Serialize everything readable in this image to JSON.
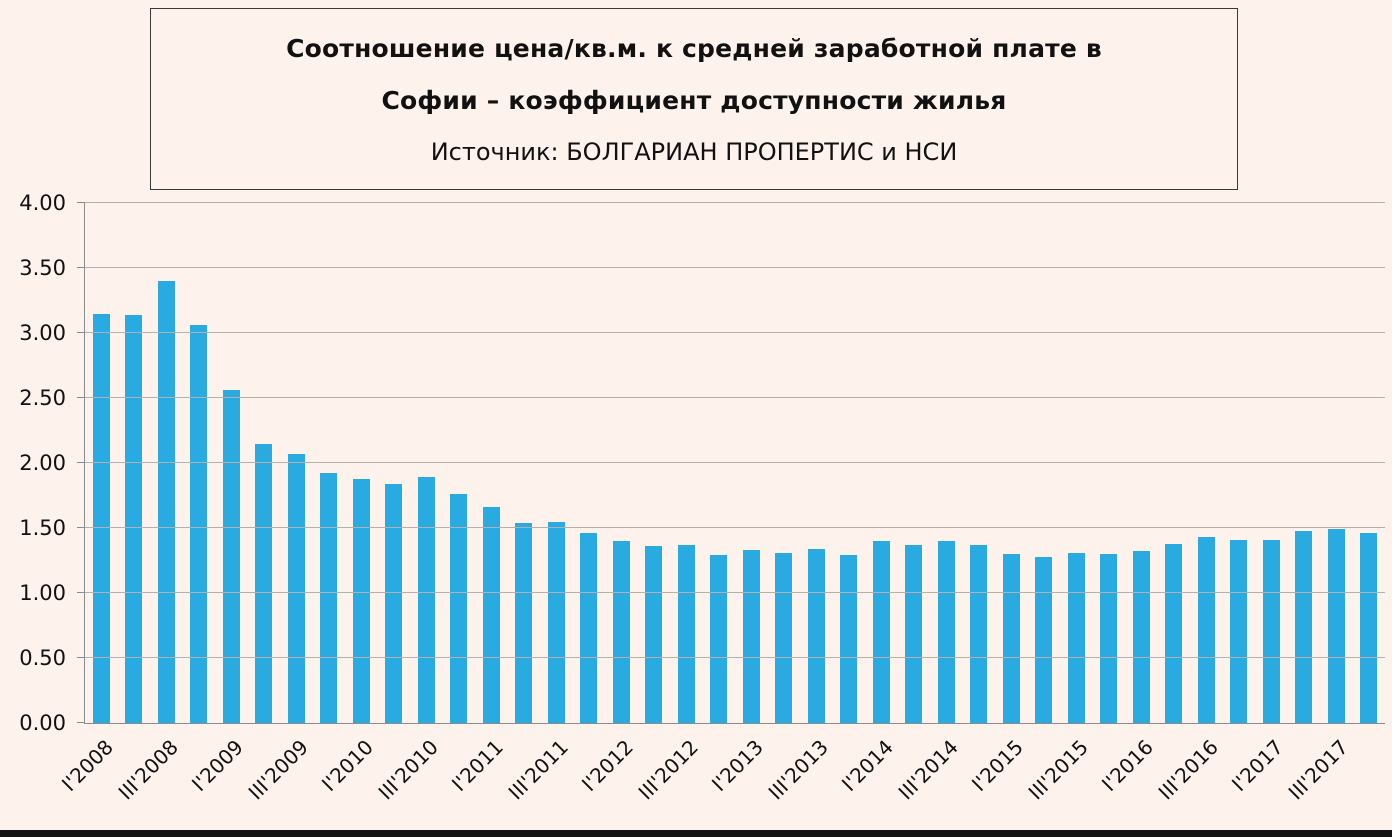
{
  "page": {
    "background": "#fdf2ec"
  },
  "title": {
    "line1": "Соотношение цена/кв.м. к средней заработной плате в",
    "line2": "Софии – коэффициент доступности жилья",
    "line3": "Источник: БОЛГАРИАН ПРОПЕРТИС и НСИ"
  },
  "chart_data": {
    "type": "bar",
    "title": "Соотношение цена/кв.м. к средней заработной плате в Софии – коэффициент доступности жилья",
    "subtitle": "Источник: БОЛГАРИАН ПРОПЕРТИС и НСИ",
    "categories": [
      "I'2008",
      "II'2008",
      "III'2008",
      "IV'2008",
      "I'2009",
      "II'2009",
      "III'2009",
      "IV'2009",
      "I'2010",
      "II'2010",
      "III'2010",
      "IV'2010",
      "I'2011",
      "II'2011",
      "III'2011",
      "IV'2011",
      "I'2012",
      "II'2012",
      "III'2012",
      "IV'2012",
      "I'2013",
      "II'2013",
      "III'2013",
      "IV'2013",
      "I'2014",
      "II'2014",
      "III'2014",
      "IV'2014",
      "I'2015",
      "II'2015",
      "III'2015",
      "IV'2015",
      "I'2016",
      "II'2016",
      "III'2016",
      "IV'2016",
      "I'2017",
      "II'2017",
      "III'2017",
      "IV'2017"
    ],
    "values": [
      3.15,
      3.14,
      3.4,
      3.06,
      2.56,
      2.15,
      2.07,
      1.92,
      1.88,
      1.84,
      1.89,
      1.76,
      1.66,
      1.54,
      1.55,
      1.46,
      1.4,
      1.36,
      1.37,
      1.29,
      1.33,
      1.31,
      1.34,
      1.29,
      1.4,
      1.37,
      1.4,
      1.37,
      1.3,
      1.28,
      1.31,
      1.3,
      1.32,
      1.38,
      1.43,
      1.41,
      1.41,
      1.48,
      1.49,
      1.46
    ],
    "x_tick_labels_shown": [
      "I'2008",
      "III'2008",
      "I'2009",
      "III'2009",
      "I'2010",
      "III'2010",
      "I'2011",
      "III'2011",
      "I'2012",
      "III'2012",
      "I'2013",
      "III'2013",
      "I'2014",
      "III'2014",
      "I'2015",
      "III'2015",
      "I'2016",
      "III'2016",
      "I'2017",
      "III'2017"
    ],
    "y_tick_labels": [
      "0.00",
      "0.50",
      "1.00",
      "1.50",
      "2.00",
      "2.50",
      "3.00",
      "3.50",
      "4.00"
    ],
    "ylim": [
      0,
      4
    ],
    "y_tick_step": 0.5,
    "bar_color": "#29abe2",
    "grid": true,
    "legend": "none",
    "xlabel": "",
    "ylabel": ""
  }
}
